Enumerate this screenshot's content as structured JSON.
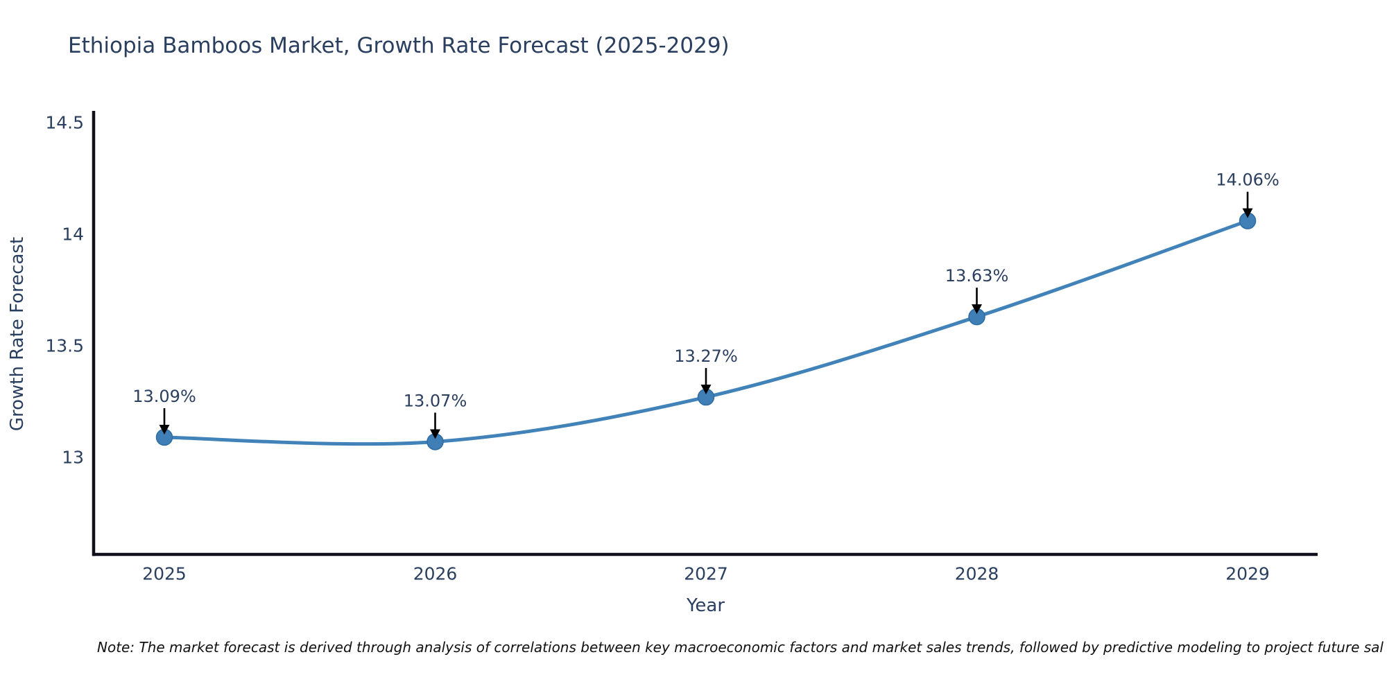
{
  "header": {
    "title": "Ethiopia Bamboos Market, Growth Rate Forecast (2025-2029)"
  },
  "footnote": {
    "text": "Note: The market forecast is derived through analysis of correlations between key macroeconomic factors and market sales trends, followed by predictive modeling to project future sal"
  },
  "chart_data": {
    "type": "line",
    "title": "Ethiopia Bamboos Market, Growth Rate Forecast (2025-2029)",
    "xlabel": "Year",
    "ylabel": "Growth Rate Forecast",
    "x": [
      2025,
      2026,
      2027,
      2028,
      2029
    ],
    "x_tick_labels": [
      "2025",
      "2026",
      "2027",
      "2028",
      "2029"
    ],
    "series": [
      {
        "name": "Growth Rate Forecast",
        "values": [
          13.09,
          13.07,
          13.27,
          13.63,
          14.06
        ]
      }
    ],
    "point_labels": [
      "13.09%",
      "13.07%",
      "13.27%",
      "13.63%",
      "14.06%"
    ],
    "y_ticks": [
      13,
      13.5,
      14,
      14.5
    ],
    "y_tick_labels": [
      "13",
      "13.5",
      "14",
      "14.5"
    ],
    "ylim": [
      12.56,
      14.55
    ],
    "xlim": [
      2024.73,
      2029.26
    ],
    "grid": false,
    "legend_position": "none",
    "line_shape": "spline",
    "colors": {
      "line": "#4183b8",
      "marker": "#3f7fb5",
      "marker_edge": "#2e6da4",
      "text": "#2a3f5f",
      "axis": "#10101c",
      "arrow": "#000000",
      "note": "#111111",
      "background": "#ffffff"
    }
  }
}
